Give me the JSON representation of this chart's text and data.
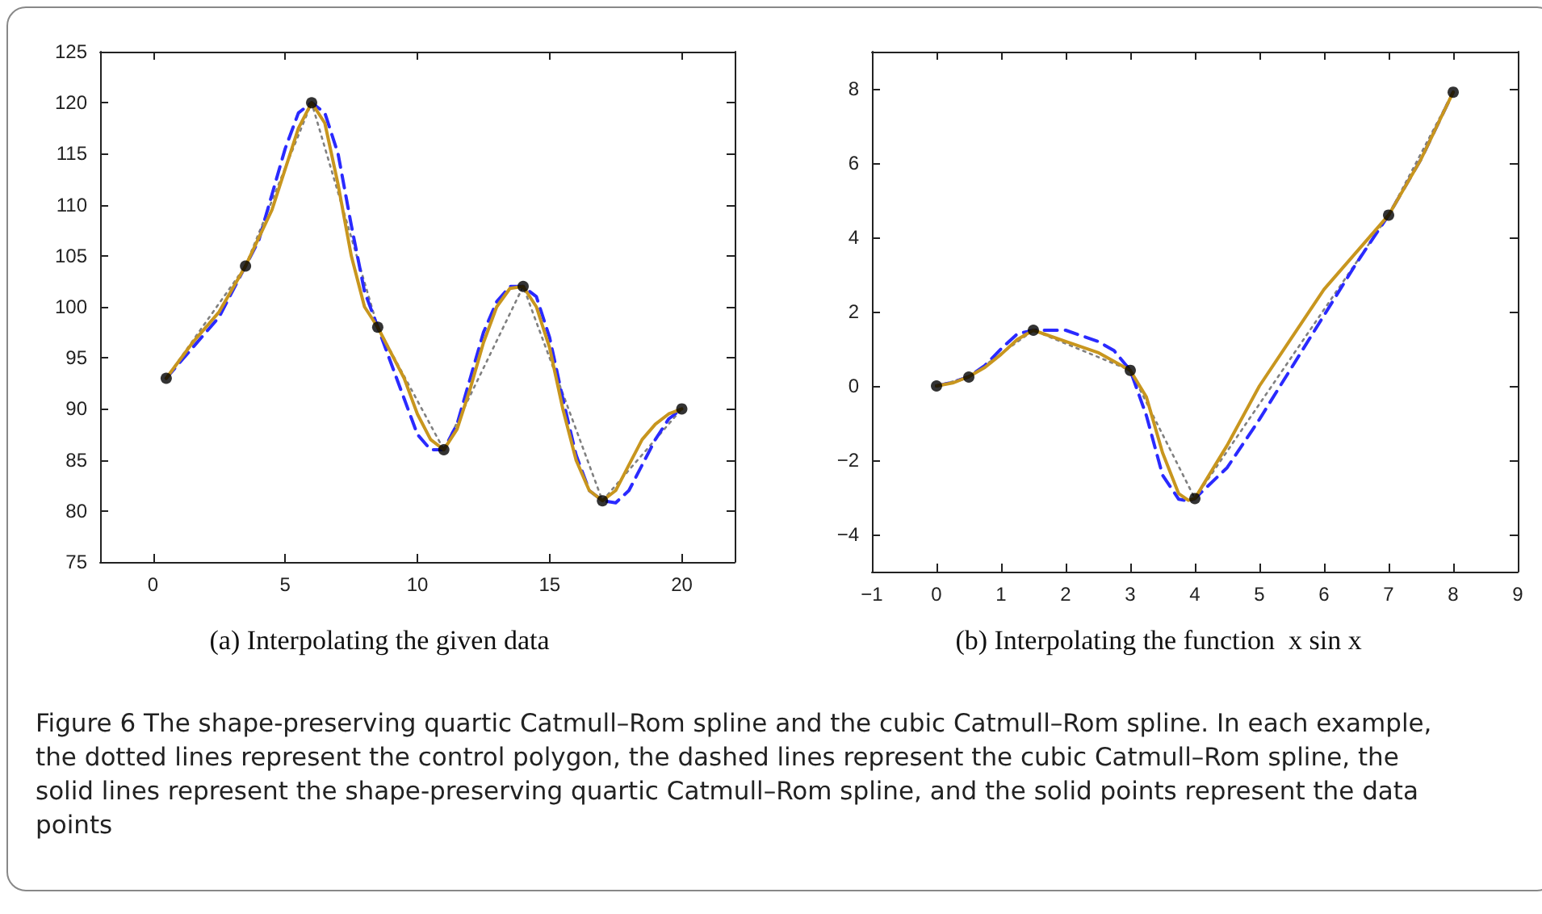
{
  "chart_data": [
    {
      "type": "line",
      "title": "(a) Interpolating the given data",
      "xlim": [
        -2,
        22
      ],
      "xticks": [
        0,
        5,
        10,
        15,
        20
      ],
      "ylim": [
        75,
        125
      ],
      "yticks": [
        75,
        80,
        85,
        90,
        95,
        100,
        105,
        110,
        115,
        120,
        125
      ],
      "grid": false,
      "annotations": [
        "Figure 6  The shape-preserving quartic Catmull–Rom spline and the cubic Catmull–Rom spline. In each example, the dotted lines represent the control polygon, the dashed lines represent the cubic Catmull–Rom spline, the solid lines represent the shape-preserving quartic Catmull–Rom spline, and the solid points represent the data points"
      ],
      "series": [
        {
          "color": "#808080",
          "line_style": "dotted",
          "marker": "none",
          "x": [
            0.5,
            3.5,
            6,
            8.5,
            11,
            14,
            17,
            20
          ],
          "values": [
            93,
            104,
            120,
            98,
            86,
            102,
            81,
            90
          ]
        },
        {
          "color": "#2a2aff",
          "line_style": "dashed",
          "marker": "none",
          "x": [
            0.5,
            1.5,
            2.5,
            3.5,
            4,
            4.5,
            5,
            5.5,
            6,
            6.5,
            7,
            7.5,
            8,
            8.5,
            9,
            9.5,
            10,
            10.5,
            11,
            11.5,
            12,
            12.5,
            13,
            13.5,
            14,
            14.5,
            15,
            15.5,
            16,
            16.5,
            17,
            17.5,
            18,
            18.5,
            19,
            19.5,
            20
          ],
          "values": [
            93,
            96,
            99,
            104,
            106.5,
            111,
            115.5,
            119,
            120,
            119,
            115,
            108,
            101.5,
            98,
            94.5,
            91,
            87.5,
            86,
            86,
            88.5,
            93,
            97.5,
            100.5,
            102,
            102,
            101,
            97,
            91,
            85.5,
            82,
            81,
            80.8,
            82,
            84.5,
            87,
            89,
            90
          ]
        },
        {
          "color": "#c8961e",
          "line_style": "solid",
          "marker": "none",
          "x": [
            0.5,
            1.5,
            2.5,
            3.5,
            4.5,
            5,
            5.5,
            6,
            6.5,
            7,
            7.5,
            8,
            8.5,
            9,
            9.5,
            10,
            10.5,
            11,
            11.5,
            12,
            12.5,
            13,
            13.5,
            14,
            14.5,
            15,
            15.5,
            16,
            16.5,
            17,
            17.5,
            18,
            18.5,
            19,
            19.5,
            20
          ],
          "values": [
            93,
            96.5,
            99.5,
            104,
            109.5,
            113.5,
            117.5,
            120,
            118,
            112,
            105,
            100,
            98,
            95.5,
            93,
            89.5,
            87,
            86,
            88,
            92,
            96.5,
            100,
            101.8,
            102,
            100,
            96,
            90,
            85,
            82,
            81,
            82,
            84.5,
            87,
            88.5,
            89.5,
            90
          ]
        },
        {
          "type": "scatter",
          "color": "#000000",
          "marker": "circle",
          "x": [
            0.5,
            3.5,
            6,
            8.5,
            11,
            14,
            17,
            20
          ],
          "values": [
            93,
            104,
            120,
            98,
            86,
            102,
            81,
            90
          ]
        }
      ]
    },
    {
      "type": "line",
      "title": "(b) Interpolating the function  x sin x",
      "xlim": [
        -1,
        9
      ],
      "xticks": [
        {
          "value": -1,
          "label": "−1"
        },
        0,
        1,
        2,
        3,
        4,
        5,
        6,
        7,
        8,
        9
      ],
      "ylim": [
        -5,
        9
      ],
      "yticks": [
        {
          "value": -4,
          "label": "−4"
        },
        {
          "value": -2,
          "label": "−2"
        },
        0,
        2,
        4,
        6,
        8
      ],
      "grid": false,
      "series": [
        {
          "color": "#808080",
          "line_style": "dotted",
          "marker": "none",
          "x": [
            0,
            0.5,
            1.5,
            3,
            4,
            7,
            8
          ],
          "values": [
            0,
            0.24,
            1.5,
            0.42,
            -3.03,
            4.6,
            7.91
          ]
        },
        {
          "color": "#2a2aff",
          "line_style": "dashed",
          "marker": "none",
          "x": [
            0,
            0.25,
            0.5,
            0.75,
            1,
            1.25,
            1.5,
            2,
            2.5,
            2.75,
            3,
            3.25,
            3.5,
            3.75,
            3.9,
            4,
            4.5,
            5,
            5.5,
            6,
            6.5,
            7,
            7.5,
            8
          ],
          "values": [
            0,
            0.1,
            0.25,
            0.55,
            1.0,
            1.4,
            1.5,
            1.5,
            1.2,
            0.95,
            0.42,
            -0.8,
            -2.4,
            -3.05,
            -3.1,
            -3.03,
            -2.2,
            -0.9,
            0.5,
            1.9,
            3.3,
            4.6,
            6.1,
            7.91
          ]
        },
        {
          "color": "#c8961e",
          "line_style": "solid",
          "marker": "none",
          "x": [
            0,
            0.25,
            0.5,
            0.75,
            1,
            1.25,
            1.5,
            2,
            2.5,
            3,
            3.25,
            3.5,
            3.75,
            3.9,
            4,
            4.5,
            5,
            5.5,
            6,
            6.5,
            7,
            7.5,
            8
          ],
          "values": [
            0,
            0.08,
            0.25,
            0.5,
            0.85,
            1.25,
            1.5,
            1.2,
            0.9,
            0.42,
            -0.3,
            -1.8,
            -2.9,
            -3.08,
            -3.03,
            -1.6,
            0.0,
            1.3,
            2.6,
            3.6,
            4.6,
            6.1,
            7.91
          ]
        },
        {
          "type": "scatter",
          "color": "#000000",
          "marker": "circle",
          "x": [
            0,
            0.5,
            1.5,
            3,
            4,
            7,
            8
          ],
          "values": [
            0,
            0.24,
            1.5,
            0.42,
            -3.03,
            4.6,
            7.91
          ]
        }
      ]
    }
  ]
}
